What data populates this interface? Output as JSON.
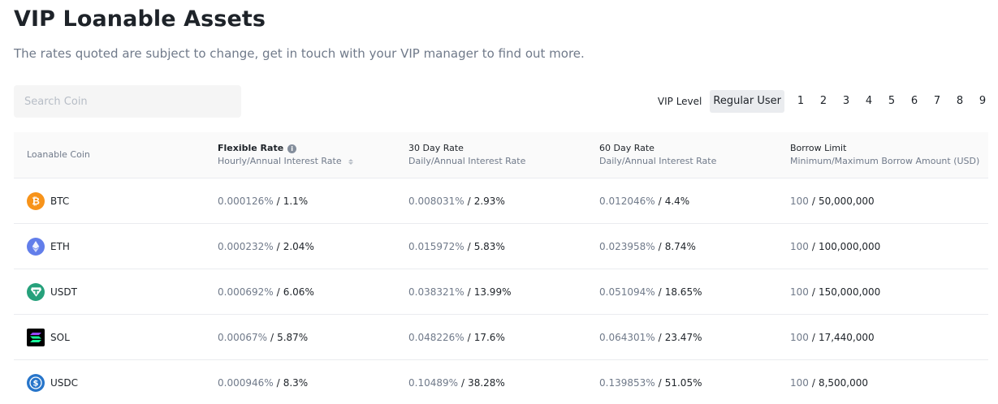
{
  "header": {
    "title": "VIP Loanable Assets",
    "subtitle": "The rates quoted are subject to change, get in touch with your VIP manager to find out more."
  },
  "search": {
    "placeholder": "Search Coin",
    "value": ""
  },
  "vip": {
    "label": "VIP Level",
    "selected": "Regular User",
    "levels": [
      "1",
      "2",
      "3",
      "4",
      "5",
      "6",
      "7",
      "8",
      "9"
    ]
  },
  "table": {
    "columns": [
      {
        "title": "Loanable Coin",
        "sub": ""
      },
      {
        "title": "Flexible Rate",
        "sub": "Hourly/Annual Interest Rate"
      },
      {
        "title": "30 Day Rate",
        "sub": "Daily/Annual Interest Rate"
      },
      {
        "title": "60 Day Rate",
        "sub": "Daily/Annual Interest Rate"
      },
      {
        "title": "Borrow Limit",
        "sub": "Minimum/Maximum Borrow Amount (USD)"
      }
    ],
    "rows": [
      {
        "coin": "BTC",
        "icon": "btc-icon",
        "color": "#f7931a",
        "flex_a": "0.000126%",
        "flex_b": "1.1%",
        "d30_a": "0.008031%",
        "d30_b": "2.93%",
        "d60_a": "0.012046%",
        "d60_b": "4.4%",
        "limit_min": "100",
        "limit_max": "50,000,000"
      },
      {
        "coin": "ETH",
        "icon": "eth-icon",
        "color": "#627eea",
        "flex_a": "0.000232%",
        "flex_b": "2.04%",
        "d30_a": "0.015972%",
        "d30_b": "5.83%",
        "d60_a": "0.023958%",
        "d60_b": "8.74%",
        "limit_min": "100",
        "limit_max": "100,000,000"
      },
      {
        "coin": "USDT",
        "icon": "usdt-icon",
        "color": "#26a17b",
        "flex_a": "0.000692%",
        "flex_b": "6.06%",
        "d30_a": "0.038321%",
        "d30_b": "13.99%",
        "d60_a": "0.051094%",
        "d60_b": "18.65%",
        "limit_min": "100",
        "limit_max": "150,000,000"
      },
      {
        "coin": "SOL",
        "icon": "sol-icon",
        "color": "#000000",
        "flex_a": "0.00067%",
        "flex_b": "5.87%",
        "d30_a": "0.048226%",
        "d30_b": "17.6%",
        "d60_a": "0.064301%",
        "d60_b": "23.47%",
        "limit_min": "100",
        "limit_max": "17,440,000"
      },
      {
        "coin": "USDC",
        "icon": "usdc-icon",
        "color": "#2775ca",
        "flex_a": "0.000946%",
        "flex_b": "8.3%",
        "d30_a": "0.10489%",
        "d30_b": "38.28%",
        "d60_a": "0.139853%",
        "d60_b": "51.05%",
        "limit_min": "100",
        "limit_max": "8,500,000"
      }
    ]
  }
}
